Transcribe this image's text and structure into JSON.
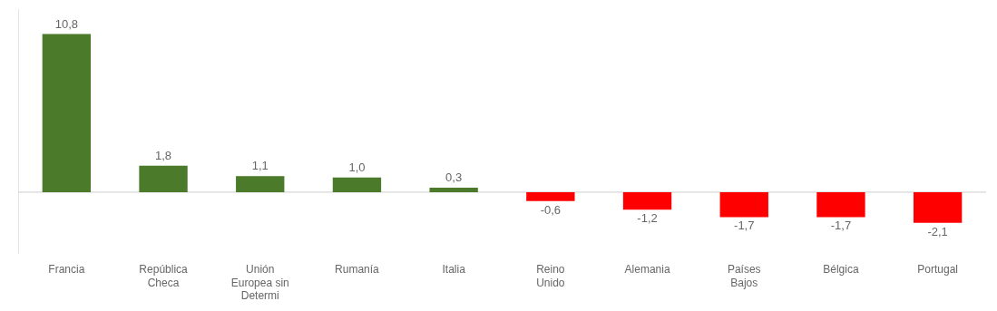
{
  "chart_data": {
    "type": "bar",
    "categories": [
      "Francia",
      "República\nCheca",
      "Unión\nEuropea sin\nDetermi",
      "Rumanía",
      "Italia",
      "Reino\nUnido",
      "Alemania",
      "Países\nBajos",
      "Bélgica",
      "Portugal"
    ],
    "values": [
      10.8,
      1.8,
      1.1,
      1.0,
      0.3,
      -0.6,
      -1.2,
      -1.7,
      -1.7,
      -2.1
    ],
    "value_labels": [
      "10,8",
      "1,8",
      "1,1",
      "1,0",
      "0,3",
      "-0,6",
      "-1,2",
      "-1,7",
      "-1,7",
      "-2,1"
    ],
    "colors": [
      "#4a7a2a",
      "#4a7a2a",
      "#4a7a2a",
      "#4a7a2a",
      "#4a7a2a",
      "#ff0000",
      "#ff0000",
      "#ff0000",
      "#ff0000",
      "#ff0000"
    ],
    "ylim": [
      -4.2,
      12.5
    ],
    "data_labels": true,
    "tick_labels": "x",
    "grid": false
  }
}
